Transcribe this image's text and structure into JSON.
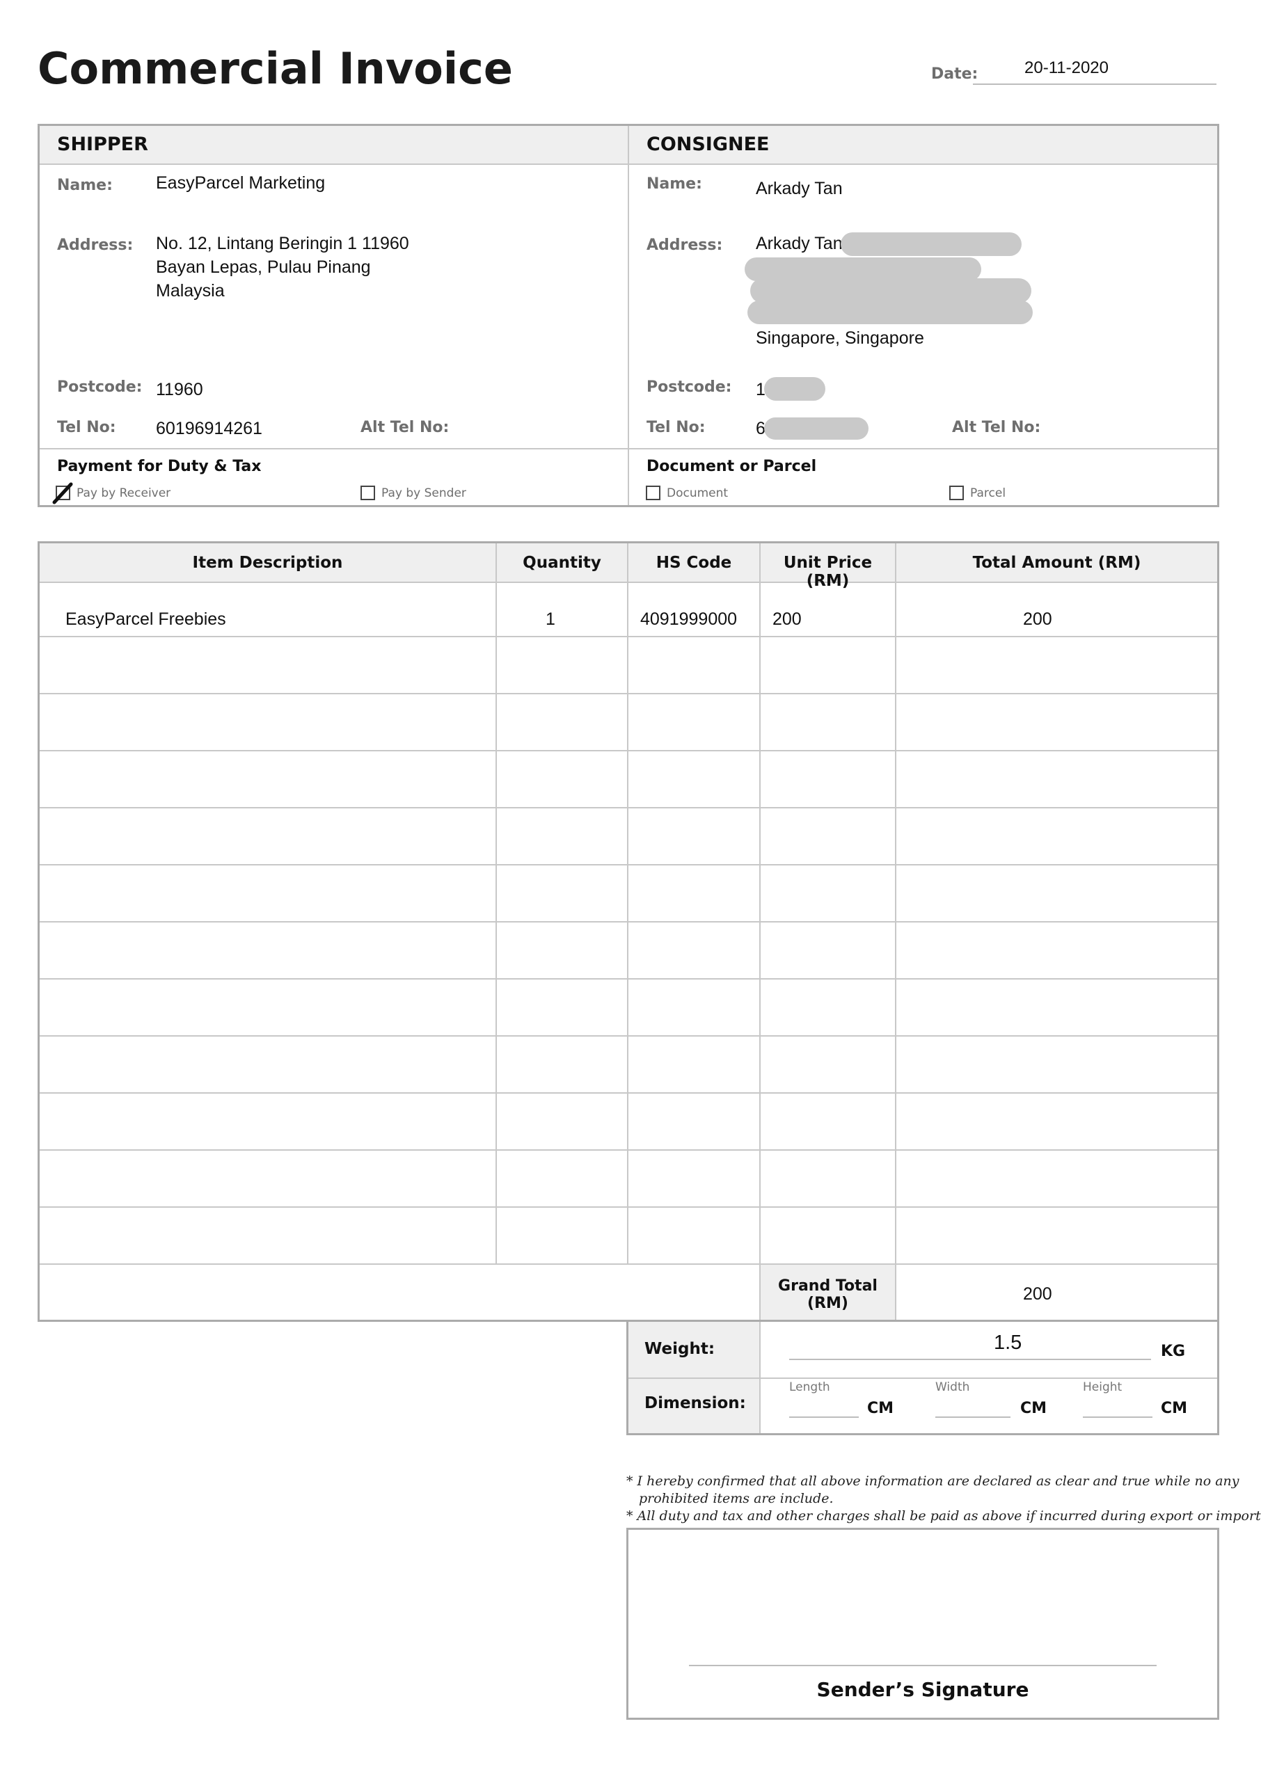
{
  "title": "Commercial Invoice",
  "date": {
    "label": "Date:",
    "value": "20-11-2020"
  },
  "shipper": {
    "header": "SHIPPER",
    "name_label": "Name:",
    "name": "EasyParcel Marketing",
    "address_label": "Address:",
    "address_lines": [
      "No. 12, Lintang Beringin 1 11960",
      "Bayan Lepas, Pulau Pinang",
      "Malaysia"
    ],
    "postcode_label": "Postcode:",
    "postcode": "11960",
    "tel_label": "Tel No:",
    "tel": "60196914261",
    "alt_tel_label": "Alt Tel No:"
  },
  "consignee": {
    "header": "CONSIGNEE",
    "name_label": "Name:",
    "name": "Arkady Tan",
    "address_label": "Address:",
    "address_first": "Arkady Tan",
    "address_last": "Singapore,   Singapore",
    "postcode_label": "Postcode:",
    "postcode_partial": "1",
    "tel_label": "Tel No:",
    "tel_partial": "6",
    "alt_tel_label": "Alt Tel No:"
  },
  "payment": {
    "header": "Payment for Duty & Tax",
    "option_receiver": "Pay by Receiver",
    "option_sender": "Pay by Sender",
    "selected": "Pay by Receiver"
  },
  "doc_type": {
    "header": "Document or Parcel",
    "option_document": "Document",
    "option_parcel": "Parcel"
  },
  "items": {
    "columns": [
      "Item Description",
      "Quantity",
      "HS Code",
      "Unit Price (RM)",
      "Total Amount (RM)"
    ],
    "rows": [
      {
        "description": "EasyParcel Freebies",
        "quantity": "1",
        "hs_code": "4091999000",
        "unit_price": "200",
        "total": "200"
      }
    ],
    "grand_total_label": "Grand Total (RM)",
    "grand_total": "200"
  },
  "shipment": {
    "weight_label": "Weight:",
    "weight": "1.5",
    "weight_unit": "KG",
    "dimension_label": "Dimension:",
    "length_label": "Length",
    "width_label": "Width",
    "height_label": "Height",
    "unit": "CM"
  },
  "declaration": {
    "line1": "* I hereby confirmed that all above information are declared as clear and true while no any",
    "line2": "prohibited items are include.",
    "line3": "* All duty and tax and other charges shall be paid as above if incurred during export or import."
  },
  "signature_label": "Sender’s Signature"
}
